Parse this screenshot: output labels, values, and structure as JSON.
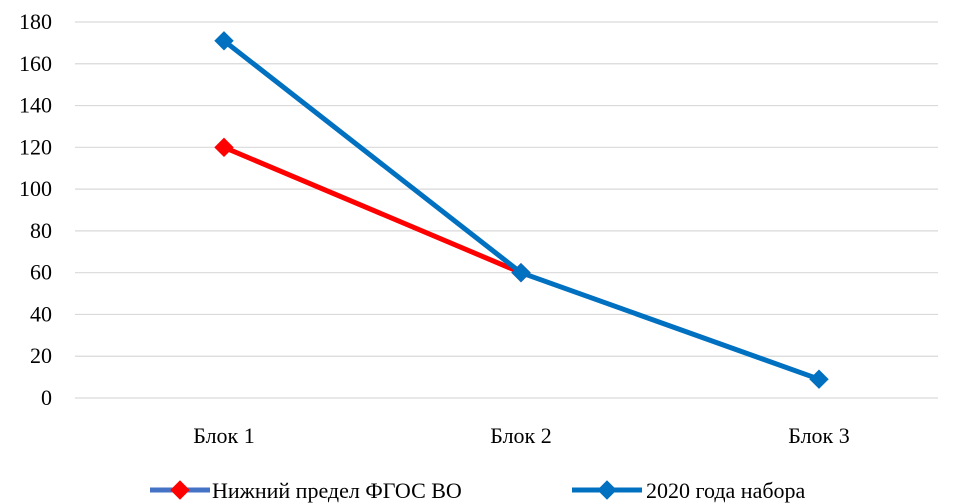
{
  "chart_data": {
    "type": "line",
    "categories": [
      "Блок 1",
      "Блок 2",
      "Блок 3"
    ],
    "series": [
      {
        "name": "Нижний предел ФГОС ВО",
        "values": [
          120,
          60,
          null
        ],
        "color": "#ff0000",
        "marker_color": "#ff0000",
        "legend_line_color": "#4472c4"
      },
      {
        "name": "2020 года набора",
        "values": [
          171,
          60,
          9
        ],
        "color": "#0070c0",
        "marker_color": "#0070c0",
        "legend_line_color": "#0070c0"
      }
    ],
    "yticks": [
      0,
      20,
      40,
      60,
      80,
      100,
      120,
      140,
      160,
      180
    ],
    "ylim": [
      0,
      180
    ],
    "grid": true,
    "legend_position": "bottom",
    "marker": "diamond",
    "title": "",
    "xlabel": "",
    "ylabel": ""
  }
}
